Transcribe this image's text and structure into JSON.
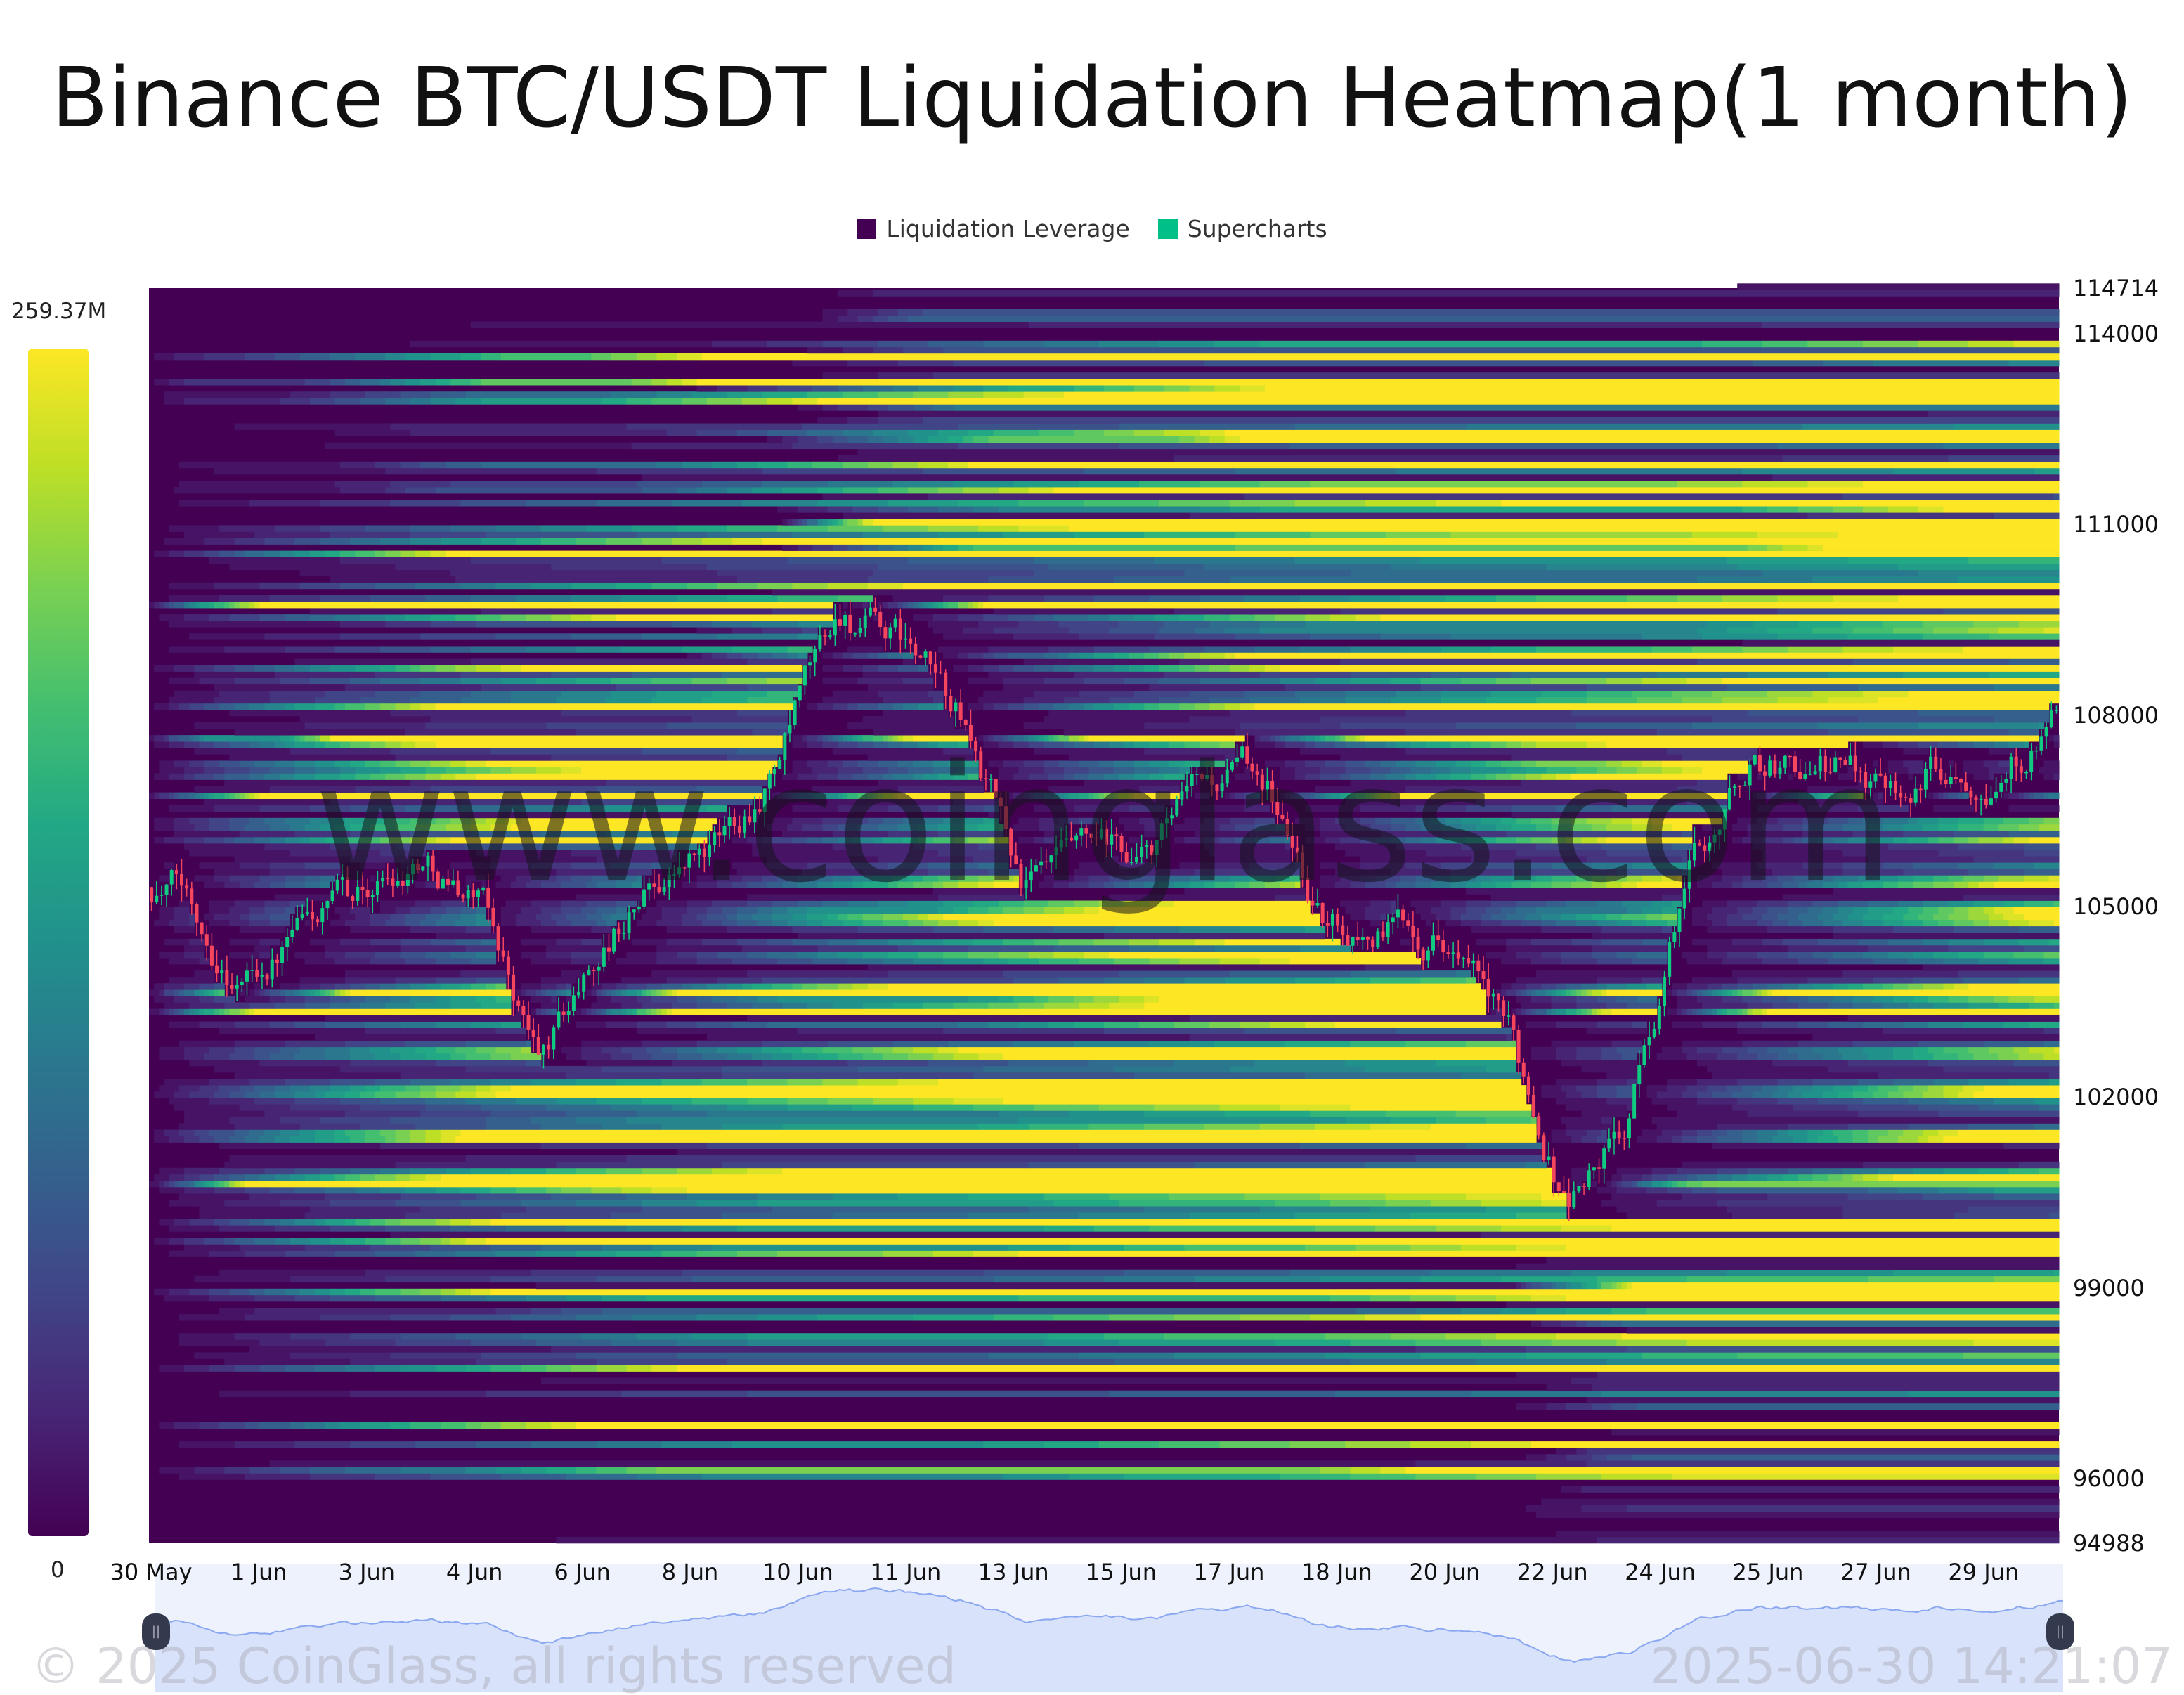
{
  "title": "Binance BTC/USDT Liquidation Heatmap(1 month)",
  "legend": [
    {
      "label": "Liquidation Leverage",
      "color": "#440154"
    },
    {
      "label": "Supercharts",
      "color": "#00c087"
    }
  ],
  "colorbar": {
    "max_label": "259.37M",
    "min_label": "0",
    "colormap": "viridis"
  },
  "watermark": "www.coinglass.com",
  "footer": {
    "copyright": "© 2025 CoinGlass, all rights reserved",
    "timestamp": "2025-06-30 14:21:07"
  },
  "colors": {
    "up": "#0ecb81",
    "down": "#f6465d",
    "background": "#440154",
    "navigator_fill": "#d8e2fa",
    "navigator_line": "#8aa7f0"
  },
  "chart_data": {
    "type": "heatmap",
    "title": "Binance BTC/USDT Liquidation Heatmap(1 month)",
    "ylim": [
      94988,
      114714
    ],
    "yticks": [
      "114714",
      "114000",
      "111000",
      "108000",
      "105000",
      "102000",
      "99000",
      "96000",
      "94988"
    ],
    "xticks": [
      "30 May",
      "1 Jun",
      "3 Jun",
      "4 Jun",
      "6 Jun",
      "8 Jun",
      "10 Jun",
      "11 Jun",
      "13 Jun",
      "15 Jun",
      "17 Jun",
      "18 Jun",
      "20 Jun",
      "22 Jun",
      "24 Jun",
      "25 Jun",
      "27 Jun",
      "29 Jun"
    ],
    "value_range": [
      0,
      259.37
    ],
    "value_unit": "M",
    "price_series": [
      {
        "date": "30 May",
        "price": 105300
      },
      {
        "date": "31 May",
        "price": 104000
      },
      {
        "date": "1 Jun",
        "price": 104600
      },
      {
        "date": "2 Jun",
        "price": 105000
      },
      {
        "date": "3 Jun",
        "price": 105900
      },
      {
        "date": "4 Jun",
        "price": 105300
      },
      {
        "date": "5 Jun",
        "price": 102500
      },
      {
        "date": "6 Jun",
        "price": 104300
      },
      {
        "date": "7 Jun",
        "price": 105600
      },
      {
        "date": "8 Jun",
        "price": 105900
      },
      {
        "date": "9 Jun",
        "price": 107500
      },
      {
        "date": "10 Jun",
        "price": 109500
      },
      {
        "date": "11 Jun",
        "price": 109000
      },
      {
        "date": "12 Jun",
        "price": 107800
      },
      {
        "date": "13 Jun",
        "price": 105300
      },
      {
        "date": "14 Jun",
        "price": 105400
      },
      {
        "date": "15 Jun",
        "price": 105500
      },
      {
        "date": "16 Jun",
        "price": 106600
      },
      {
        "date": "17 Jun",
        "price": 107000
      },
      {
        "date": "18 Jun",
        "price": 104700
      },
      {
        "date": "19 Jun",
        "price": 104700
      },
      {
        "date": "20 Jun",
        "price": 104800
      },
      {
        "date": "21 Jun",
        "price": 102800
      },
      {
        "date": "22 Jun",
        "price": 100500
      },
      {
        "date": "23 Jun",
        "price": 101500
      },
      {
        "date": "24 Jun",
        "price": 105500
      },
      {
        "date": "25 Jun",
        "price": 107300
      },
      {
        "date": "26 Jun",
        "price": 107200
      },
      {
        "date": "27 Jun",
        "price": 107100
      },
      {
        "date": "28 Jun",
        "price": 107300
      },
      {
        "date": "29 Jun",
        "price": 107600
      },
      {
        "date": "30 Jun",
        "price": 107900
      }
    ],
    "highlighted_levels": [
      {
        "price": 111000,
        "intensity": 1.0
      },
      {
        "price": 109700,
        "intensity": 0.9
      },
      {
        "price": 107650,
        "intensity": 0.85
      },
      {
        "price": 103650,
        "intensity": 0.9
      },
      {
        "price": 103300,
        "intensity": 1.0
      },
      {
        "price": 100650,
        "intensity": 0.95
      },
      {
        "price": 99000,
        "intensity": 0.7
      },
      {
        "price": 106700,
        "intensity": 0.75
      }
    ]
  }
}
